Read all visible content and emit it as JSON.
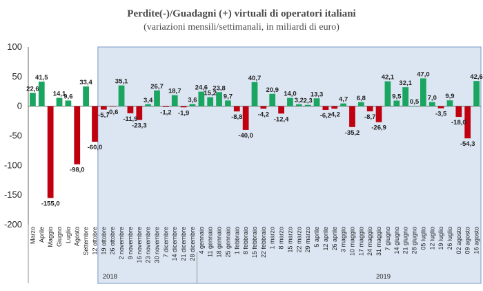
{
  "colors": {
    "positive": "#1aa560",
    "negative": "#c0000f",
    "shade": "#dce6f3",
    "plot_border": "#888888"
  },
  "chart_data": {
    "type": "bar",
    "title": "Perdite(-)/Guadagni (+) virtuali di operatori italiani",
    "subtitle": "(variazioni mensili/settimanali, in miliardi di euro)",
    "ylim": [
      -200,
      100
    ],
    "yticks": [
      100,
      50,
      0,
      -50,
      -100,
      -150,
      -200
    ],
    "shaded_from_index": 8,
    "groups": [
      {
        "label": "2018",
        "start": 8,
        "end": 18
      },
      {
        "label": "2019",
        "start": 19,
        "end": 60
      }
    ],
    "categories": [
      "Marzo",
      "Aprile",
      "Maggio",
      "Giugno",
      "Luglio",
      "Agosto",
      "Settembre",
      "12 ottobre",
      "19 ottobre",
      "26 ottobre",
      "2 novembre",
      "9 novembre",
      "16 novembre",
      "23 novembre",
      "30 novembre",
      "7 dicembre",
      "14 dicembre",
      "21 dicembre",
      "28 dicembre",
      "4 gennaio",
      "11 gennaio",
      "18 gennaio",
      "25 gennaio",
      "1 febbraio",
      "8 febbraio",
      "15 febbraio",
      "22 febbraio",
      "1 marzo",
      "8 marzo",
      "15 marzo",
      "22 marzo",
      "29 marzo",
      "5 aprile",
      "12 aprile",
      "26 aprile",
      "3 maggio",
      "10 maggio",
      "17 maggio",
      "24 maggio",
      "31 maggio",
      "7 giugno",
      "14 giugno",
      "21 giugno",
      "28 giugno",
      "05 luglio",
      "12 luglio",
      "19 luglio",
      "26 luglio",
      "02 agosto",
      "09 agosto",
      "16 agosto"
    ],
    "values": [
      22.6,
      41.5,
      -155.0,
      14.1,
      9.6,
      -98.0,
      33.4,
      -60.0,
      -5.7,
      -0.6,
      35.1,
      -11.9,
      -23.3,
      3.4,
      26.7,
      -1.2,
      18.7,
      -1.9,
      3.6,
      24.6,
      15.2,
      23.8,
      9.7,
      -8.8,
      -40.0,
      40.7,
      -4.2,
      20.9,
      -12.4,
      14.0,
      3.2,
      2.3,
      13.3,
      -6.2,
      -4.2,
      4.7,
      -35.2,
      6.8,
      -8.7,
      -26.9,
      42.1,
      9.5,
      32.1,
      0.5,
      47.0,
      7.0,
      -3.5,
      9.9,
      -18.0,
      -54.3,
      42.6
    ],
    "data_labels": [
      "22,6",
      "41,5",
      "-155,0",
      "14,1",
      "9,6",
      "-98,0",
      "33,4",
      "-60,0",
      "-5,7",
      "-0,6",
      "35,1",
      "-11,9",
      "-23,3",
      "3,4",
      "26,7",
      "-1,2",
      "18,7",
      "-1,9",
      "3,6",
      "24,6",
      "15,2",
      "23,8",
      "9,7",
      "-8,8",
      "-40,0",
      "40,7",
      "-4,2",
      "20,9",
      "-12,4",
      "14,0",
      "3,2",
      "2,3",
      "13,3",
      "-6,2",
      "-4,2",
      "4,7",
      "-35,2",
      "6,8",
      "-8,7",
      "-26,9",
      "42,1",
      "9,5",
      "32,1",
      "0,5",
      "47,0",
      "7,0",
      "-3,5",
      "9,9",
      "-18,0",
      "-54,3",
      "42,6"
    ]
  }
}
